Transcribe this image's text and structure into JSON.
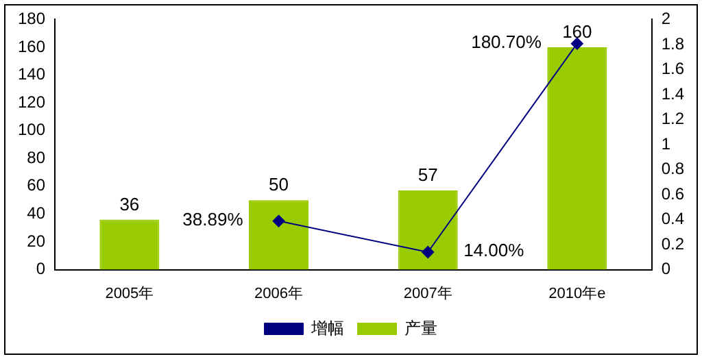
{
  "chart_data": {
    "type": "bar",
    "categories": [
      "2005年",
      "2006年",
      "2007年",
      "2010年e"
    ],
    "series": [
      {
        "name": "产量",
        "color": "#99cc00",
        "values": [
          36,
          50,
          57,
          160
        ],
        "value_labels": [
          "36",
          "50",
          "57",
          "160"
        ]
      },
      {
        "name": "增幅",
        "type": "line",
        "axis": "y2",
        "color": "#000080",
        "values": [
          null,
          0.3889,
          0.14,
          1.807
        ],
        "value_labels": [
          null,
          "38.89%",
          "14.00%",
          "180.70%"
        ],
        "marker": "diamond"
      }
    ],
    "ylim": [
      0,
      180
    ],
    "yticks": [
      0,
      20,
      40,
      60,
      80,
      100,
      120,
      140,
      160,
      180
    ],
    "y2lim": [
      0,
      2
    ],
    "y2ticks": [
      0,
      0.2,
      0.4,
      0.6,
      0.8,
      1,
      1.2,
      1.4,
      1.6,
      1.8,
      2
    ],
    "grid": false,
    "legend": "bottom"
  }
}
